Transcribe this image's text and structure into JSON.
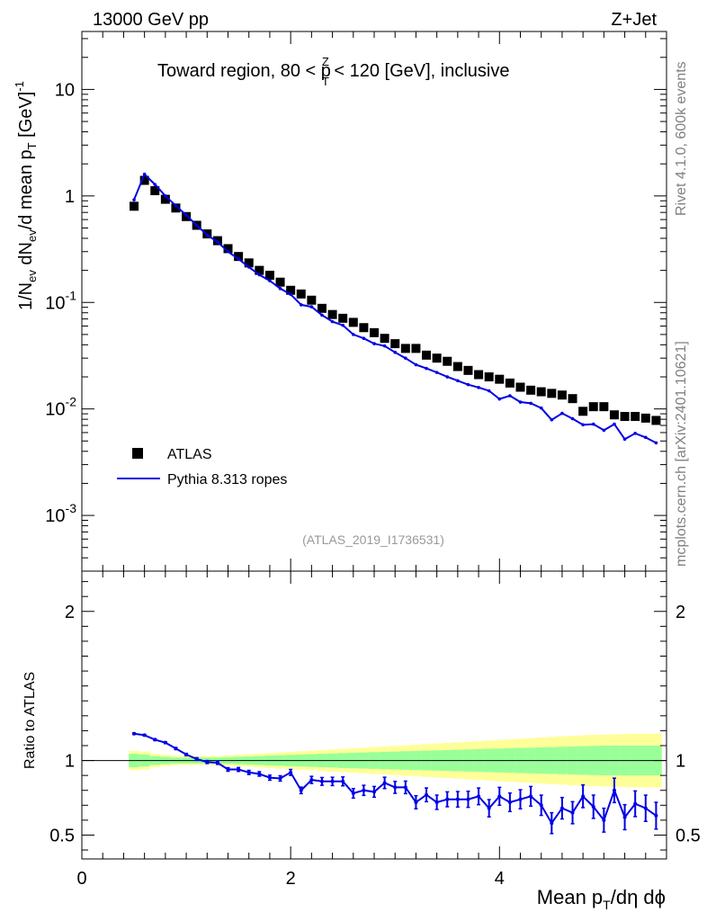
{
  "header": {
    "left": "13000 GeV pp",
    "right": "Z+Jet"
  },
  "side_labels": {
    "rivet": "Rivet 4.1.0,  600k events",
    "mcplots": "mcplots.cern.ch [arXiv:2401.10621]"
  },
  "colors": {
    "data": "#000000",
    "mc": "#0000e6",
    "band_inner": "#99ff99",
    "band_outer": "#ffff99"
  },
  "chart_data": {
    "type": "line",
    "title": "Toward region, 80 < pTZ < 120 [GeV], inclusive",
    "title_parts": {
      "pre": "Toward region, 80 < p",
      "sup": "Z",
      "sub": "T",
      "post": " < 120 [GeV], inclusive"
    },
    "analysis_label": "(ATLAS_2019_I1736531)",
    "xlabel": "Mean pT/dη dϕ",
    "xlabel_parts": {
      "pre": "Mean p",
      "sub": "T",
      "post": "/dη dϕ"
    },
    "ylabel": "1/Nev dNev/d mean pT [GeV]-1",
    "ylabel_parts": {
      "a": "1/N",
      "a_sub": "ev",
      "b": " dN",
      "b_sub": "ev",
      "c": "/d mean p",
      "c_sub": "T",
      "d": " [GeV]",
      "d_sup": "-1"
    },
    "ratio_ylabel": "Ratio to ATLAS",
    "xlim": [
      0,
      5.6
    ],
    "ylim": [
      0.0003,
      35
    ],
    "ratio_ylim": [
      0.34,
      2.27
    ],
    "yscale": "log",
    "x_ticks": [
      0,
      2,
      4
    ],
    "x_tick_labels": [
      "0",
      "2",
      "4"
    ],
    "y_ticks": [
      0.001,
      0.01,
      0.1,
      1,
      10
    ],
    "y_tick_labels": [
      {
        "base": "10",
        "exp": "-3"
      },
      {
        "base": "10",
        "exp": "-2"
      },
      {
        "base": "10",
        "exp": "-1"
      },
      {
        "base": "1",
        "exp": ""
      },
      {
        "base": "10",
        "exp": ""
      }
    ],
    "ratio_ticks": [
      0.5,
      1,
      2
    ],
    "ratio_tick_labels": [
      "0.5",
      "1",
      "2"
    ],
    "legend": {
      "position": "middle-left",
      "entries": [
        "ATLAS",
        "Pythia 8.313 ropes"
      ]
    },
    "x": [
      0.5,
      0.6,
      0.7,
      0.8,
      0.9,
      1.0,
      1.1,
      1.2,
      1.3,
      1.4,
      1.5,
      1.6,
      1.7,
      1.8,
      1.9,
      2.0,
      2.1,
      2.2,
      2.3,
      2.4,
      2.5,
      2.6,
      2.7,
      2.8,
      2.9,
      3.0,
      3.1,
      3.2,
      3.3,
      3.4,
      3.5,
      3.6,
      3.7,
      3.8,
      3.9,
      4.0,
      4.1,
      4.2,
      4.3,
      4.4,
      4.5,
      4.6,
      4.7,
      4.8,
      4.9,
      5.0,
      5.1,
      5.2,
      5.3,
      5.4,
      5.5
    ],
    "series": [
      {
        "name": "ATLAS",
        "values": [
          0.8,
          1.4,
          1.12,
          0.93,
          0.77,
          0.64,
          0.53,
          0.44,
          0.38,
          0.32,
          0.27,
          0.235,
          0.2,
          0.18,
          0.155,
          0.13,
          0.12,
          0.105,
          0.088,
          0.077,
          0.071,
          0.065,
          0.058,
          0.052,
          0.046,
          0.041,
          0.037,
          0.037,
          0.032,
          0.03,
          0.028,
          0.025,
          0.023,
          0.021,
          0.02,
          0.019,
          0.0175,
          0.016,
          0.015,
          0.0145,
          0.014,
          0.0135,
          0.0125,
          0.0095,
          0.0105,
          0.0105,
          0.0088,
          0.0085,
          0.0085,
          0.0082,
          0.0078
        ],
        "uncertainty_inner": [
          0.045,
          0.04,
          0.03,
          0.025,
          0.02,
          0.02,
          0.02,
          0.02,
          0.02,
          0.022,
          0.025,
          0.027,
          0.03,
          0.033,
          0.035,
          0.038,
          0.04,
          0.042,
          0.045,
          0.047,
          0.05,
          0.052,
          0.054,
          0.056,
          0.058,
          0.06,
          0.062,
          0.064,
          0.066,
          0.068,
          0.07,
          0.072,
          0.074,
          0.076,
          0.078,
          0.08,
          0.082,
          0.084,
          0.086,
          0.088,
          0.09,
          0.092,
          0.094,
          0.096,
          0.098,
          0.1,
          0.1,
          0.1,
          0.1,
          0.1,
          0.1
        ],
        "uncertainty_outer": [
          0.065,
          0.06,
          0.045,
          0.038,
          0.032,
          0.03,
          0.03,
          0.03,
          0.03,
          0.034,
          0.038,
          0.042,
          0.046,
          0.05,
          0.054,
          0.058,
          0.062,
          0.066,
          0.07,
          0.074,
          0.078,
          0.082,
          0.086,
          0.09,
          0.094,
          0.098,
          0.102,
          0.106,
          0.11,
          0.114,
          0.118,
          0.122,
          0.126,
          0.13,
          0.134,
          0.138,
          0.142,
          0.146,
          0.15,
          0.154,
          0.158,
          0.162,
          0.166,
          0.17,
          0.172,
          0.174,
          0.176,
          0.178,
          0.18,
          0.18,
          0.18
        ]
      },
      {
        "name": "Pythia 8.313 ropes",
        "values": [
          0.92,
          1.6,
          1.28,
          1.0,
          0.81,
          0.66,
          0.53,
          0.43,
          0.37,
          0.3,
          0.256,
          0.215,
          0.182,
          0.16,
          0.135,
          0.119,
          0.095,
          0.091,
          0.076,
          0.066,
          0.061,
          0.05,
          0.046,
          0.041,
          0.039,
          0.034,
          0.03,
          0.026,
          0.024,
          0.022,
          0.02,
          0.0184,
          0.0169,
          0.0159,
          0.0148,
          0.0124,
          0.0133,
          0.0116,
          0.0113,
          0.0102,
          0.0079,
          0.0091,
          0.0081,
          0.0071,
          0.0072,
          0.0063,
          0.0072,
          0.0052,
          0.0059,
          0.0054,
          0.0048
        ],
        "ratio": [
          1.18,
          1.17,
          1.14,
          1.12,
          1.08,
          1.04,
          1.01,
          0.99,
          0.985,
          0.94,
          0.94,
          0.92,
          0.91,
          0.885,
          0.88,
          0.92,
          0.8,
          0.87,
          0.86,
          0.86,
          0.86,
          0.78,
          0.8,
          0.79,
          0.85,
          0.82,
          0.82,
          0.72,
          0.77,
          0.72,
          0.74,
          0.74,
          0.74,
          0.76,
          0.68,
          0.76,
          0.72,
          0.74,
          0.76,
          0.7,
          0.58,
          0.68,
          0.65,
          0.76,
          0.69,
          0.6,
          0.8,
          0.62,
          0.71,
          0.68,
          0.63
        ],
        "ratio_err": [
          0.005,
          0.005,
          0.006,
          0.006,
          0.007,
          0.008,
          0.009,
          0.01,
          0.011,
          0.012,
          0.013,
          0.014,
          0.015,
          0.017,
          0.018,
          0.02,
          0.022,
          0.024,
          0.026,
          0.028,
          0.03,
          0.032,
          0.034,
          0.036,
          0.038,
          0.04,
          0.042,
          0.044,
          0.046,
          0.048,
          0.05,
          0.052,
          0.054,
          0.056,
          0.058,
          0.06,
          0.062,
          0.064,
          0.066,
          0.068,
          0.07,
          0.072,
          0.074,
          0.076,
          0.078,
          0.08,
          0.082,
          0.084,
          0.086,
          0.088,
          0.09
        ]
      }
    ]
  }
}
